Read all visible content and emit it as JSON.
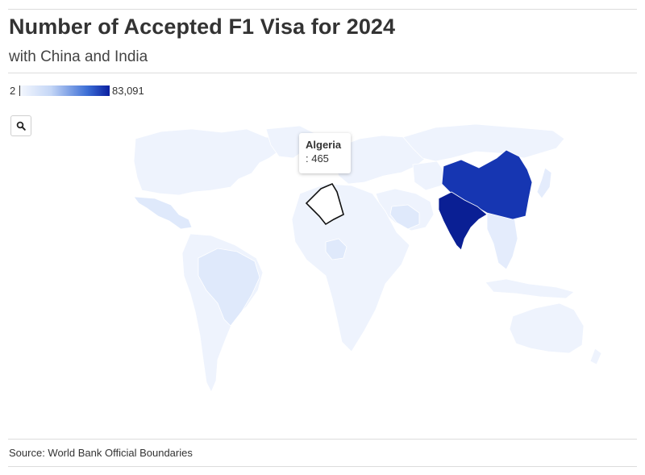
{
  "header": {
    "title": "Number of Accepted F1 Visa for 2024",
    "subtitle": "with China and India"
  },
  "legend": {
    "min_label": "2",
    "max_label": "83,091",
    "color_low": "#f5f8fe",
    "color_high": "#0a1fa0"
  },
  "controls": {
    "zoom_icon": "search-icon"
  },
  "tooltip": {
    "country": "Algeria",
    "value": ": 465"
  },
  "map_data": {
    "type": "choropleth",
    "countries": [
      {
        "name": "China",
        "shade": "dark"
      },
      {
        "name": "India",
        "shade": "darkest"
      },
      {
        "name": "Algeria",
        "value": 465,
        "highlighted": true
      }
    ]
  },
  "footer": {
    "source": "Source: World Bank Official Boundaries"
  }
}
